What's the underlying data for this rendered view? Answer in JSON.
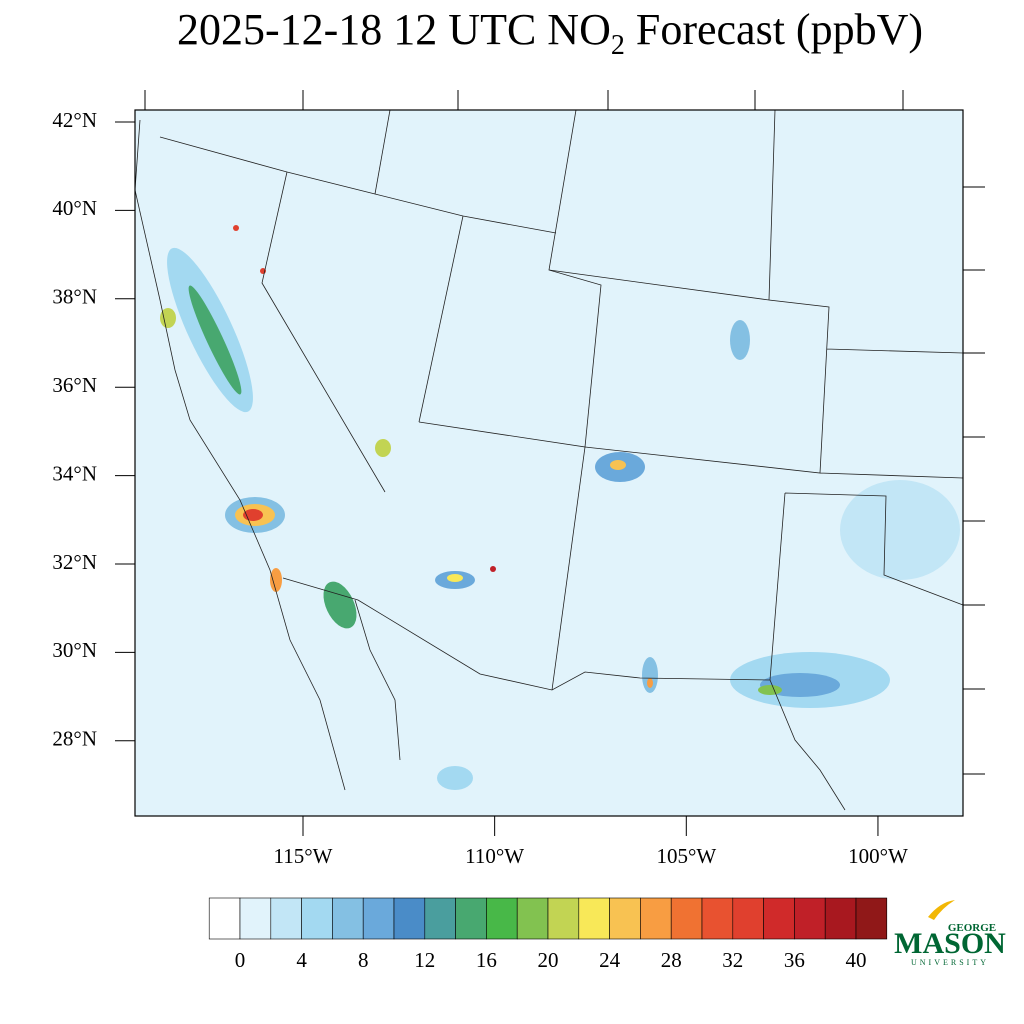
{
  "title": {
    "main": "2025-12-18 12 UTC NO",
    "subscript": "2",
    "rest": " Forecast (ppbV)"
  },
  "map": {
    "lat_ticks": [
      {
        "value": 42,
        "label": "42°N"
      },
      {
        "value": 40,
        "label": "40°N"
      },
      {
        "value": 38,
        "label": "38°N"
      },
      {
        "value": 36,
        "label": "36°N"
      },
      {
        "value": 34,
        "label": "34°N"
      },
      {
        "value": 32,
        "label": "32°N"
      },
      {
        "value": 30,
        "label": "30°N"
      },
      {
        "value": 28,
        "label": "28°N"
      }
    ],
    "lon_ticks": [
      {
        "value": -115,
        "label": "115°W"
      },
      {
        "value": -110,
        "label": "110°W"
      },
      {
        "value": -105,
        "label": "105°W"
      },
      {
        "value": -100,
        "label": "100°W"
      }
    ]
  },
  "colorbar": {
    "colors": [
      "#ffffff",
      "#e1f3fb",
      "#c2e6f6",
      "#a3d9f1",
      "#84c0e3",
      "#6aa9db",
      "#4a8cc8",
      "#4a9e9e",
      "#48a870",
      "#48b848",
      "#82c250",
      "#c2d453",
      "#f8e858",
      "#f8c252",
      "#f89d42",
      "#f07232",
      "#e85230",
      "#e0402e",
      "#d02a2a",
      "#c02028",
      "#a8181f",
      "#901818"
    ],
    "labels": [
      0,
      4,
      8,
      12,
      16,
      20,
      24,
      28,
      32,
      36,
      40
    ],
    "step": 2
  },
  "logo": {
    "top": "GEORGE",
    "main": "MASON",
    "bottom": "UNIVERSITY"
  }
}
